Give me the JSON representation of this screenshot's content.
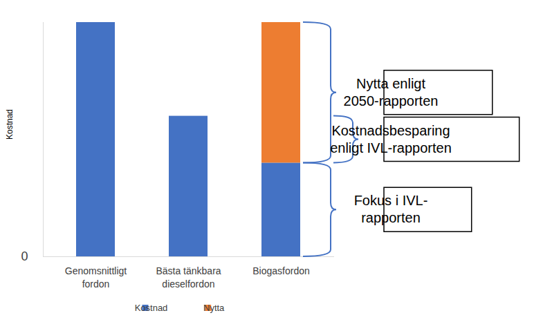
{
  "chart_data": {
    "type": "bar",
    "categories": [
      "Genomsnittligt fordon",
      "Bästa tänkbara dieselfordon",
      "Biogasfordon"
    ],
    "series": [
      {
        "name": "Kostnad",
        "color": "#4472c4",
        "values": [
          5,
          3,
          2
        ]
      },
      {
        "name": "Nytta",
        "color": "#ed7d31",
        "values": [
          null,
          null,
          3
        ]
      }
    ],
    "stacked": true,
    "ylabel": "Kostnad",
    "ylim": [
      0,
      5
    ],
    "yticks": [
      0
    ],
    "grid": true,
    "legend": "bottom",
    "annotations": [
      {
        "text": "Nytta enligt\n2050-rapporten",
        "from": 2,
        "to": 5
      },
      {
        "text": "Kostnadsbesparing\nenligt IVL-rapporten",
        "from": 2,
        "to": 3
      },
      {
        "text": "Fokus i IVL-\nrapporten",
        "from": 0,
        "to": 2
      }
    ]
  }
}
